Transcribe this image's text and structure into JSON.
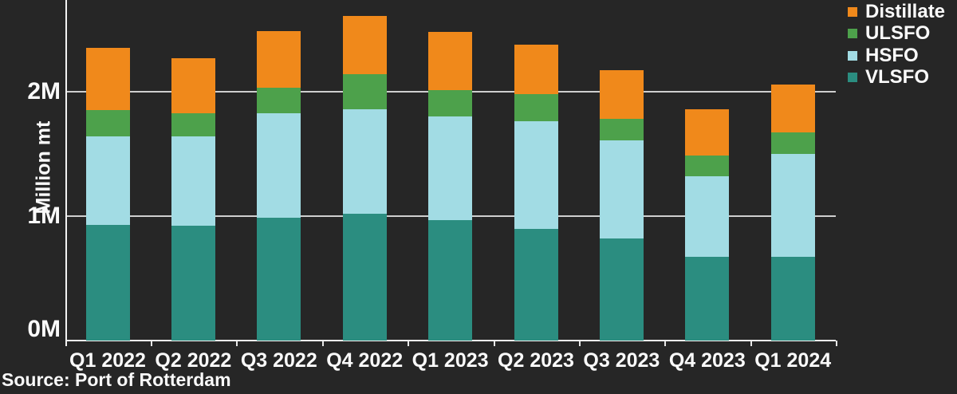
{
  "theme": {
    "background": "#262626",
    "text": "#FAFAFA",
    "gridline": "#CFCFCF",
    "axis": "#F2F2F2"
  },
  "chart_data": {
    "type": "bar",
    "stacked": true,
    "title": "",
    "categories": [
      "Q1 2022",
      "Q2 2022",
      "Q3 2022",
      "Q4 2022",
      "Q1 2023",
      "Q2 2023",
      "Q3 2023",
      "Q4 2023",
      "Q1 2024"
    ],
    "series": [
      {
        "name": "VLSFO",
        "color": "#2B8D80",
        "values": [
          0.93,
          0.92,
          0.99,
          1.02,
          0.97,
          0.9,
          0.82,
          0.67,
          0.67
        ]
      },
      {
        "name": "HSFO",
        "color": "#A2DCE4",
        "values": [
          0.71,
          0.72,
          0.84,
          0.84,
          0.83,
          0.86,
          0.79,
          0.65,
          0.83
        ]
      },
      {
        "name": "ULSFO",
        "color": "#4DA14B",
        "values": [
          0.21,
          0.19,
          0.2,
          0.28,
          0.21,
          0.22,
          0.17,
          0.17,
          0.17
        ]
      },
      {
        "name": "Distillate",
        "color": "#F0891B",
        "values": [
          0.5,
          0.44,
          0.46,
          0.47,
          0.47,
          0.4,
          0.39,
          0.37,
          0.39
        ]
      }
    ],
    "totals": [
      2.35,
      2.27,
      2.49,
      2.61,
      2.48,
      2.38,
      2.17,
      1.86,
      2.06
    ],
    "xlabel": "",
    "ylabel": "Million mt",
    "yticks": [
      {
        "label": "0M",
        "value": 0
      },
      {
        "label": "1M",
        "value": 1
      },
      {
        "label": "2M",
        "value": 2
      }
    ],
    "ylim": [
      0,
      2.7
    ],
    "grid": "horizontal",
    "legend_position": "top-right",
    "legend_order": [
      "Distillate",
      "ULSFO",
      "HSFO",
      "VLSFO"
    ],
    "source": "Source: Port of Rotterdam"
  }
}
